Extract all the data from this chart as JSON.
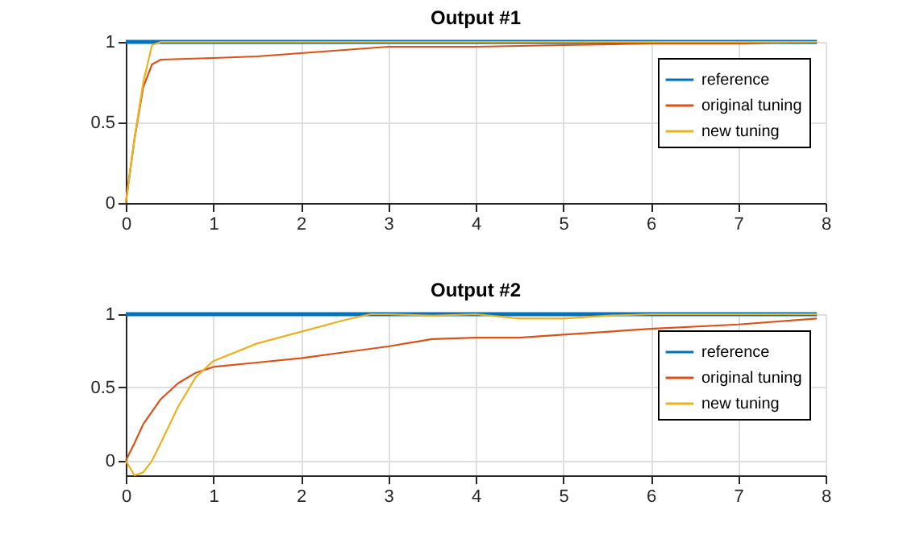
{
  "chart_data": [
    {
      "type": "line",
      "title": "Output #1",
      "xlim": [
        0,
        8
      ],
      "ylim": [
        0,
        1
      ],
      "xticks": [
        0,
        1,
        2,
        3,
        4,
        5,
        6,
        7,
        8
      ],
      "yticks": [
        0,
        0.5,
        1
      ],
      "grid": true,
      "legend": "top right",
      "series": [
        {
          "name": "reference",
          "color": "#0072bd",
          "x": [
            0,
            7.9
          ],
          "values": [
            1,
            1
          ]
        },
        {
          "name": "original tuning",
          "color": "#d95319",
          "x": [
            0,
            0.1,
            0.2,
            0.3,
            0.4,
            1,
            1.5,
            2,
            3,
            4,
            5,
            6,
            7,
            7.9
          ],
          "values": [
            0,
            0.4,
            0.72,
            0.86,
            0.89,
            0.9,
            0.91,
            0.93,
            0.97,
            0.97,
            0.98,
            0.99,
            0.99,
            1
          ]
        },
        {
          "name": "new tuning",
          "color": "#edb120",
          "x": [
            0,
            0.1,
            0.2,
            0.3,
            0.4,
            0.5,
            7.9
          ],
          "values": [
            0,
            0.4,
            0.75,
            0.98,
            1,
            1,
            1
          ]
        }
      ]
    },
    {
      "type": "line",
      "title": "Output #2",
      "xlim": [
        0,
        8
      ],
      "ylim": [
        -0.1,
        1
      ],
      "xticks": [
        0,
        1,
        2,
        3,
        4,
        5,
        6,
        7,
        8
      ],
      "yticks": [
        0,
        0.5,
        1
      ],
      "grid": true,
      "legend": "top right",
      "series": [
        {
          "name": "reference",
          "color": "#0072bd",
          "x": [
            0,
            7.9
          ],
          "values": [
            1,
            1
          ]
        },
        {
          "name": "original tuning",
          "color": "#d95319",
          "x": [
            0,
            0.1,
            0.2,
            0.4,
            0.6,
            0.8,
            1,
            1.5,
            2,
            2.5,
            3,
            3.5,
            4,
            4.5,
            5,
            6,
            7,
            7.9
          ],
          "values": [
            0,
            0.12,
            0.25,
            0.42,
            0.53,
            0.6,
            0.64,
            0.67,
            0.7,
            0.74,
            0.78,
            0.83,
            0.84,
            0.84,
            0.86,
            0.9,
            0.93,
            0.97
          ]
        },
        {
          "name": "new tuning",
          "color": "#edb120",
          "x": [
            0,
            0.1,
            0.2,
            0.3,
            0.4,
            0.6,
            0.8,
            1,
            1.5,
            2,
            2.5,
            2.8,
            3,
            3.5,
            4,
            4.5,
            5,
            5.5,
            6,
            7,
            7.9
          ],
          "values": [
            0,
            -0.1,
            -0.08,
            0,
            0.12,
            0.37,
            0.57,
            0.68,
            0.8,
            0.88,
            0.96,
            1,
            1,
            0.99,
            1,
            0.97,
            0.97,
            0.99,
            1,
            1,
            1
          ]
        }
      ]
    }
  ]
}
